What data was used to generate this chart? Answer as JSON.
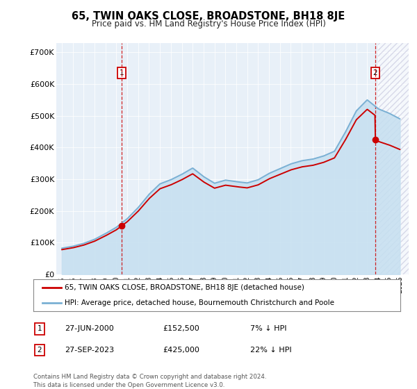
{
  "title": "65, TWIN OAKS CLOSE, BROADSTONE, BH18 8JE",
  "subtitle": "Price paid vs. HM Land Registry's House Price Index (HPI)",
  "ylabel_ticks": [
    "£0",
    "£100K",
    "£200K",
    "£300K",
    "£400K",
    "£500K",
    "£600K",
    "£700K"
  ],
  "ytick_values": [
    0,
    100000,
    200000,
    300000,
    400000,
    500000,
    600000,
    700000
  ],
  "ylim": [
    0,
    730000
  ],
  "xlim_start": 1994.5,
  "xlim_end": 2026.8,
  "sale1_x": 2000.49,
  "sale1_y": 152500,
  "sale2_x": 2023.74,
  "sale2_y": 425000,
  "legend_line1": "65, TWIN OAKS CLOSE, BROADSTONE, BH18 8JE (detached house)",
  "legend_line2": "HPI: Average price, detached house, Bournemouth Christchurch and Poole",
  "annotation1_date": "27-JUN-2000",
  "annotation1_price": "£152,500",
  "annotation1_hpi": "7% ↓ HPI",
  "annotation2_date": "27-SEP-2023",
  "annotation2_price": "£425,000",
  "annotation2_hpi": "22% ↓ HPI",
  "footnote": "Contains HM Land Registry data © Crown copyright and database right 2024.\nThis data is licensed under the Open Government Licence v3.0.",
  "line_color_red": "#cc0000",
  "line_color_blue": "#7ab0d4",
  "fill_color_blue": "#c5dff0",
  "hpi_years": [
    1995,
    1996,
    1997,
    1998,
    1999,
    2000,
    2001,
    2002,
    2003,
    2004,
    2005,
    2006,
    2007,
    2008,
    2009,
    2010,
    2011,
    2012,
    2013,
    2014,
    2015,
    2016,
    2017,
    2018,
    2019,
    2020,
    2021,
    2022,
    2023,
    2024,
    2025,
    2026
  ],
  "hpi_values": [
    82000,
    88000,
    97000,
    110000,
    128000,
    148000,
    175000,
    210000,
    252000,
    285000,
    298000,
    315000,
    335000,
    308000,
    287000,
    297000,
    292000,
    288000,
    298000,
    318000,
    333000,
    348000,
    358000,
    363000,
    373000,
    388000,
    448000,
    515000,
    550000,
    522000,
    508000,
    490000
  ],
  "future_x_start": 2024.0
}
